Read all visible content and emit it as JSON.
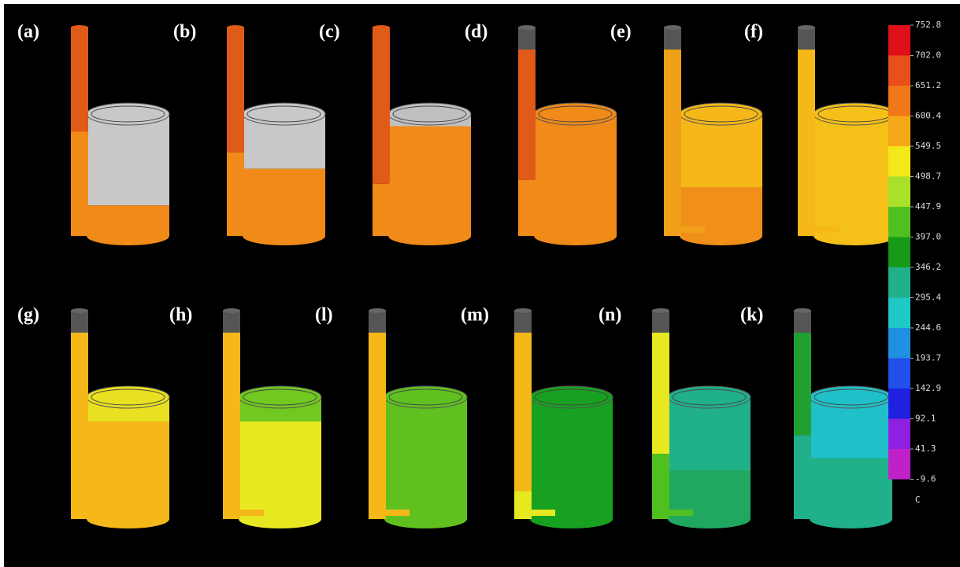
{
  "panels": {
    "top": [
      "(a)",
      "(b)",
      "(c)",
      "(d)",
      "(e)",
      "(f)"
    ],
    "bottom": [
      "(g)",
      "(h)",
      "(l)",
      "(m)",
      "(n)",
      "(k)"
    ]
  },
  "legend": {
    "labels": [
      "752.8",
      "702.0",
      "651.2",
      "600.4",
      "549.5",
      "498.7",
      "447.9",
      "397.0",
      "346.2",
      "295.4",
      "244.6",
      "193.7",
      "142.9",
      "92.1",
      "41.3",
      "-9.6"
    ],
    "colors": [
      "#e0101a",
      "#e8501a",
      "#f07818",
      "#f5a818",
      "#f2e81a",
      "#a8e02a",
      "#50c020",
      "#189a18",
      "#20b08a",
      "#20c8c8",
      "#2090e0",
      "#2050e8",
      "#2020e0",
      "#9020e0",
      "#c020c8"
    ],
    "unit": "C"
  }
}
